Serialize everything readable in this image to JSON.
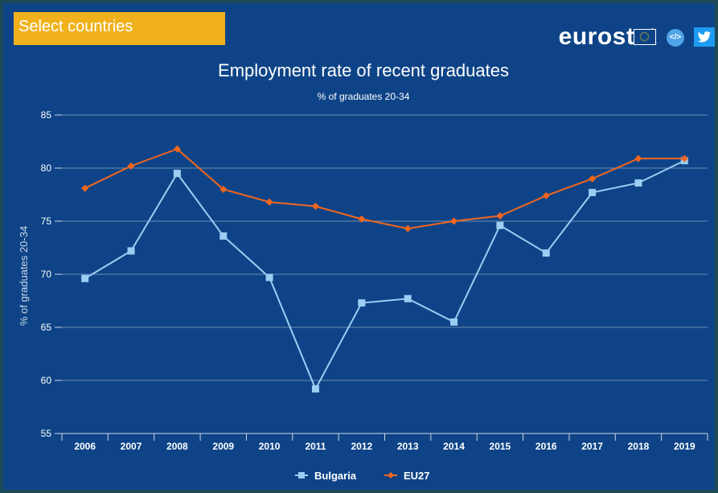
{
  "header": {
    "select_label": "Select countries",
    "brand": "eurostat",
    "icons": [
      "eu-flag-icon",
      "embed-code-icon",
      "twitter-icon"
    ]
  },
  "colors": {
    "background": "#0e4487",
    "button": "#f0b11c",
    "bulgaria": "#9ccdf3",
    "eu27": "#f2661e",
    "gridline": "#6f8db4"
  },
  "chart_data": {
    "type": "line",
    "title": "Employment rate of recent graduates",
    "subtitle": "% of graduates 20-34",
    "ylabel": "% of graduates 20-34",
    "xlabel": "",
    "ylim": [
      55,
      85
    ],
    "yticks": [
      55,
      60,
      65,
      70,
      75,
      80,
      85
    ],
    "grid": true,
    "legend": "bottom-center",
    "categories": [
      "2006",
      "2007",
      "2008",
      "2009",
      "2010",
      "2011",
      "2012",
      "2013",
      "2014",
      "2015",
      "2016",
      "2017",
      "2018",
      "2019"
    ],
    "series": [
      {
        "name": "Bulgaria",
        "marker": "square",
        "color": "#9ccdf3",
        "values": [
          69.6,
          72.2,
          79.5,
          73.6,
          69.7,
          59.2,
          67.3,
          67.7,
          65.5,
          74.6,
          72.0,
          77.7,
          78.6,
          80.7
        ]
      },
      {
        "name": "EU27",
        "marker": "diamond",
        "color": "#f2661e",
        "values": [
          78.1,
          80.2,
          81.8,
          78.0,
          76.8,
          76.4,
          75.2,
          74.3,
          75.0,
          75.5,
          77.4,
          79.0,
          80.9,
          80.9
        ]
      }
    ]
  }
}
